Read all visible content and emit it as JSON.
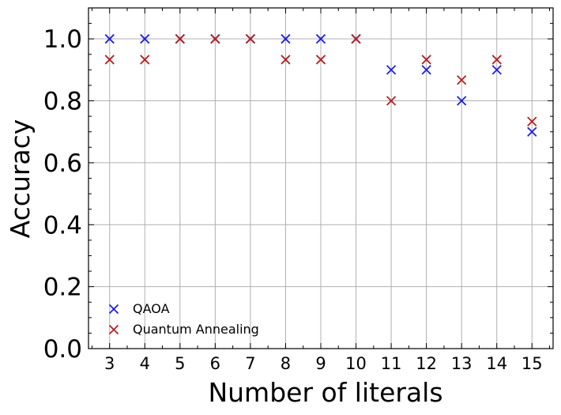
{
  "chart_data": {
    "type": "scatter",
    "x": [
      3,
      4,
      5,
      6,
      7,
      8,
      9,
      10,
      11,
      12,
      13,
      14,
      15
    ],
    "series": [
      {
        "name": "QAOA",
        "color": "#1f1fe0",
        "marker": "x",
        "values": [
          1.0,
          1.0,
          1.0,
          1.0,
          1.0,
          1.0,
          1.0,
          1.0,
          0.9,
          0.9,
          0.8,
          0.9,
          0.7
        ]
      },
      {
        "name": "Quantum Annealing",
        "color": "#b22222",
        "marker": "x",
        "values": [
          0.933,
          0.933,
          1.0,
          1.0,
          1.0,
          0.933,
          0.933,
          1.0,
          0.8,
          0.933,
          0.867,
          0.933,
          0.733
        ]
      }
    ],
    "xlabel": "Number of literals",
    "ylabel": "Accuracy",
    "xticks": [
      "3",
      "4",
      "5",
      "6",
      "7",
      "8",
      "9",
      "10",
      "11",
      "12",
      "13",
      "14",
      "15"
    ],
    "yticks": [
      "0.0",
      "0.2",
      "0.4",
      "0.6",
      "0.8",
      "1.0"
    ],
    "xlim": [
      2.4,
      15.6
    ],
    "ylim": [
      0.0,
      1.1
    ],
    "grid": true,
    "legend_position": "lower-left"
  }
}
